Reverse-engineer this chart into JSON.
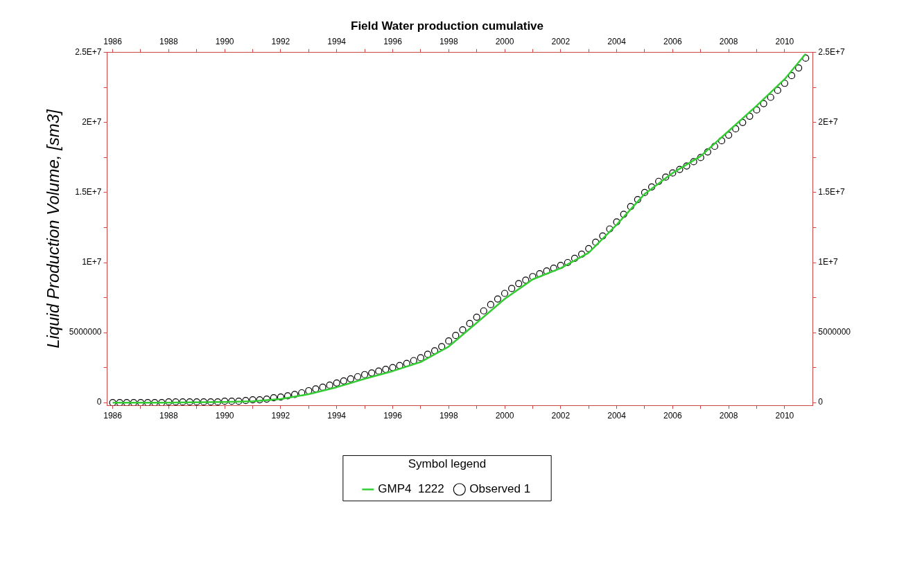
{
  "chart_data": {
    "type": "scatter",
    "title": "Field Water production cumulative",
    "ylabel": "Liquid Production Volume, [sm3]",
    "legend_title": "Symbol legend",
    "legend": "bottom",
    "grid": false,
    "xlim": [
      1985.8,
      2011.0
    ],
    "x2lim": [
      1985.8,
      2011.0
    ],
    "ylim": [
      -200000,
      25000000
    ],
    "y2lim": [
      -200000,
      25000000
    ],
    "xticks": [
      1986,
      {
        "value": 1987,
        "label": null
      },
      1988,
      {
        "value": 1989,
        "label": null
      },
      1990,
      {
        "value": 1991,
        "label": null
      },
      1992,
      {
        "value": 1993,
        "label": null
      },
      1994,
      {
        "value": 1995,
        "label": null
      },
      1996,
      {
        "value": 1997,
        "label": null
      },
      1998,
      {
        "value": 1999,
        "label": null
      },
      2000,
      {
        "value": 2001,
        "label": null
      },
      2002,
      {
        "value": 2003,
        "label": null
      },
      2004,
      {
        "value": 2005,
        "label": null
      },
      2006,
      {
        "value": 2007,
        "label": null
      },
      2008,
      {
        "value": 2009,
        "label": null
      },
      2010
    ],
    "x2ticks": [
      1986,
      {
        "value": 1987,
        "label": null
      },
      1988,
      {
        "value": 1989,
        "label": null
      },
      1990,
      {
        "value": 1991,
        "label": null
      },
      1992,
      {
        "value": 1993,
        "label": null
      },
      1994,
      {
        "value": 1995,
        "label": null
      },
      1996,
      {
        "value": 1997,
        "label": null
      },
      1998,
      {
        "value": 1999,
        "label": null
      },
      2000,
      {
        "value": 2001,
        "label": null
      },
      2002,
      {
        "value": 2003,
        "label": null
      },
      2004,
      {
        "value": 2005,
        "label": null
      },
      2006,
      {
        "value": 2007,
        "label": null
      },
      2008,
      {
        "value": 2009,
        "label": null
      },
      2010
    ],
    "yticks": [
      0,
      {
        "value": 2500000,
        "label": null
      },
      5000000,
      {
        "value": 7500000,
        "label": null
      },
      {
        "value": 10000000,
        "label": "1E+7"
      },
      {
        "value": 12500000,
        "label": null
      },
      {
        "value": 15000000,
        "label": "1.5E+7"
      },
      {
        "value": 17500000,
        "label": null
      },
      {
        "value": 20000000,
        "label": "2E+7"
      },
      {
        "value": 22500000,
        "label": null
      },
      {
        "value": 25000000,
        "label": "2.5E+7"
      }
    ],
    "y2ticks": [
      0,
      {
        "value": 2500000,
        "label": null
      },
      5000000,
      {
        "value": 7500000,
        "label": null
      },
      {
        "value": 10000000,
        "label": "1E+7"
      },
      {
        "value": 12500000,
        "label": null
      },
      {
        "value": 15000000,
        "label": "1.5E+7"
      },
      {
        "value": 17500000,
        "label": null
      },
      {
        "value": 20000000,
        "label": "2E+7"
      },
      {
        "value": 22500000,
        "label": null
      },
      {
        "value": 25000000,
        "label": "2.5E+7"
      }
    ],
    "series": [
      {
        "name": "Observed 1",
        "marker": "circle",
        "color": "#000000",
        "x": [
          1986,
          1986.25,
          1986.5,
          1986.75,
          1987,
          1987.25,
          1987.5,
          1987.75,
          1988,
          1988.25,
          1988.5,
          1988.75,
          1989,
          1989.25,
          1989.5,
          1989.75,
          1990,
          1990.25,
          1990.5,
          1990.75,
          1991,
          1991.25,
          1991.5,
          1991.75,
          1992,
          1992.25,
          1992.5,
          1992.75,
          1993,
          1993.25,
          1993.5,
          1993.75,
          1994,
          1994.25,
          1994.5,
          1994.75,
          1995,
          1995.25,
          1995.5,
          1995.75,
          1996,
          1996.25,
          1996.5,
          1996.75,
          1997,
          1997.25,
          1997.5,
          1997.75,
          1998,
          1998.25,
          1998.5,
          1998.75,
          1999,
          1999.25,
          1999.5,
          1999.75,
          2000,
          2000.25,
          2000.5,
          2000.75,
          2001,
          2001.25,
          2001.5,
          2001.75,
          2002,
          2002.25,
          2002.5,
          2002.75,
          2003,
          2003.25,
          2003.5,
          2003.75,
          2004,
          2004.25,
          2004.5,
          2004.75,
          2005,
          2005.25,
          2005.5,
          2005.75,
          2006,
          2006.25,
          2006.5,
          2006.75,
          2007,
          2007.25,
          2007.5,
          2007.75,
          2008,
          2008.25,
          2008.5,
          2008.75,
          2009,
          2009.25,
          2009.5,
          2009.75,
          2010,
          2010.25,
          2010.5,
          2010.75
        ],
        "values": [
          0,
          0,
          0,
          0,
          0,
          0,
          0,
          0,
          50000,
          50000,
          50000,
          50000,
          50000,
          50000,
          50000,
          50000,
          100000,
          100000,
          100000,
          150000,
          200000,
          200000,
          250000,
          350000,
          400000,
          480000,
          580000,
          700000,
          850000,
          980000,
          1100000,
          1250000,
          1400000,
          1550000,
          1700000,
          1850000,
          2000000,
          2120000,
          2250000,
          2380000,
          2500000,
          2650000,
          2800000,
          3000000,
          3200000,
          3450000,
          3700000,
          4000000,
          4400000,
          4800000,
          5200000,
          5650000,
          6100000,
          6550000,
          7000000,
          7400000,
          7800000,
          8150000,
          8500000,
          8750000,
          9000000,
          9200000,
          9400000,
          9600000,
          9800000,
          10000000,
          10300000,
          10600000,
          11000000,
          11450000,
          11900000,
          12400000,
          12900000,
          13450000,
          14000000,
          14500000,
          15000000,
          15400000,
          15800000,
          16100000,
          16400000,
          16650000,
          16900000,
          17200000,
          17500000,
          17900000,
          18300000,
          18700000,
          19100000,
          19550000,
          20000000,
          20450000,
          20900000,
          21350000,
          21800000,
          22300000,
          22800000,
          23350000,
          23900000,
          24600000
        ]
      },
      {
        "name": "GMP4  1222",
        "type": "line",
        "marker": "none",
        "color": "#33cc33",
        "x": [
          1986,
          1988,
          1990,
          1991,
          1992,
          1993,
          1994,
          1995,
          1996,
          1997,
          1998,
          1999,
          2000,
          2001,
          2002,
          2003,
          2004,
          2005,
          2006,
          2007,
          2008,
          2009,
          2010,
          2010.75
        ],
        "values": [
          0,
          0,
          50000,
          100000,
          250000,
          600000,
          1100000,
          1700000,
          2250000,
          2900000,
          4000000,
          5700000,
          7400000,
          8800000,
          9600000,
          10700000,
          12700000,
          14900000,
          16400000,
          17600000,
          19400000,
          21200000,
          23100000,
          24900000
        ]
      }
    ]
  }
}
